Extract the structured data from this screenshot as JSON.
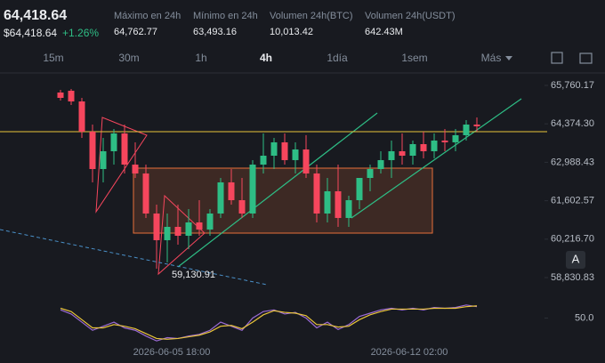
{
  "header": {
    "price": "64,418.64",
    "price_usd": "$64,418.64",
    "change": "+1.26%",
    "stats": [
      {
        "label": "Máximo en 24h",
        "value": "64,762.77"
      },
      {
        "label": "Mínimo en 24h",
        "value": "63,493.16"
      },
      {
        "label": "Volumen 24h(BTC)",
        "value": "10,013.42"
      },
      {
        "label": "Volumen 24h(USDT)",
        "value": "642.43M"
      }
    ]
  },
  "timeframes": [
    "15m",
    "30m",
    "1h",
    "4h",
    "1día",
    "1sem",
    "Más"
  ],
  "active_timeframe": "4h",
  "chart_data": {
    "type": "candlestick",
    "up_color": "#2ebd85",
    "down_color": "#f6465d",
    "ylim": [
      58574,
      65953
    ],
    "yticks": [
      {
        "value": 65760.17,
        "label": "65,760.17"
      },
      {
        "value": 64374.3,
        "label": "64,374.30"
      },
      {
        "value": 62988.43,
        "label": "62,988.43"
      },
      {
        "value": 61602.57,
        "label": "61,602.57"
      },
      {
        "value": 60216.7,
        "label": "60,216.70"
      },
      {
        "value": 58830.83,
        "label": "58,830.83"
      }
    ],
    "x_labels": [
      "2026-06-05 18:00",
      "2026-06-12 02:00"
    ],
    "low_annotation": "59,130.91",
    "scale_button": "A",
    "open": [
      65504,
      65568,
      65183,
      64093,
      62745,
      63387,
      64028,
      62905,
      62585,
      61141,
      60179,
      60660,
      60339,
      60820,
      60564,
      61141,
      62264,
      61622,
      61141,
      62905,
      63226,
      63708,
      63066,
      63451,
      62585,
      61141,
      61943,
      60981,
      61622,
      62424,
      62745,
      63066,
      63387,
      63226,
      63643,
      63387,
      63772,
      63708,
      63964,
      64349
    ],
    "high": [
      65600,
      65632,
      65311,
      64349,
      63868,
      64189,
      64349,
      63708,
      62905,
      61462,
      61141,
      61462,
      61301,
      61622,
      61301,
      62424,
      62745,
      62424,
      63066,
      64028,
      63868,
      64028,
      63708,
      63966,
      62905,
      62424,
      62905,
      61783,
      62424,
      62905,
      63387,
      63772,
      64028,
      63772,
      64093,
      64028,
      64189,
      64189,
      64510,
      64606
    ],
    "low": [
      65215,
      65055,
      63868,
      62264,
      62264,
      62905,
      62585,
      62424,
      60981,
      59152,
      59377,
      60019,
      59858,
      60339,
      60339,
      60981,
      61462,
      60981,
      60981,
      62585,
      62745,
      62905,
      62585,
      62424,
      60820,
      60820,
      60660,
      60660,
      61301,
      61943,
      62585,
      62424,
      62905,
      62905,
      63130,
      63130,
      63387,
      63387,
      63772,
      64093
    ],
    "close": [
      65311,
      65183,
      64093,
      62745,
      63387,
      64028,
      62905,
      62585,
      61141,
      60179,
      60660,
      60339,
      60820,
      60564,
      61141,
      62264,
      61622,
      61141,
      62905,
      63226,
      63708,
      63066,
      63451,
      62585,
      61141,
      61943,
      60981,
      61622,
      62424,
      62745,
      63066,
      63387,
      63226,
      63643,
      63387,
      63772,
      63708,
      63964,
      64349,
      64285
    ],
    "rsi": {
      "ylim": [
        20,
        80
      ],
      "yticks": [
        {
          "value": 50,
          "label": "50.0"
        }
      ],
      "lines": [
        {
          "color": "#9b6bd6",
          "values": [
            60,
            55,
            45,
            35,
            40,
            45,
            38,
            35,
            28,
            22,
            26,
            25,
            28,
            30,
            35,
            45,
            40,
            35,
            50,
            58,
            60,
            55,
            57,
            50,
            38,
            45,
            36,
            42,
            52,
            56,
            60,
            62,
            60,
            62,
            60,
            63,
            62,
            63,
            66,
            64
          ]
        },
        {
          "color": "#e8c43a",
          "values": [
            62,
            58,
            48,
            38,
            38,
            42,
            40,
            37,
            31,
            25,
            24,
            25,
            27,
            29,
            33,
            40,
            41,
            37,
            45,
            54,
            59,
            57,
            56,
            53,
            42,
            42,
            39,
            40,
            48,
            54,
            58,
            61,
            61,
            61,
            61,
            62,
            62,
            62,
            64,
            65
          ]
        }
      ]
    }
  }
}
